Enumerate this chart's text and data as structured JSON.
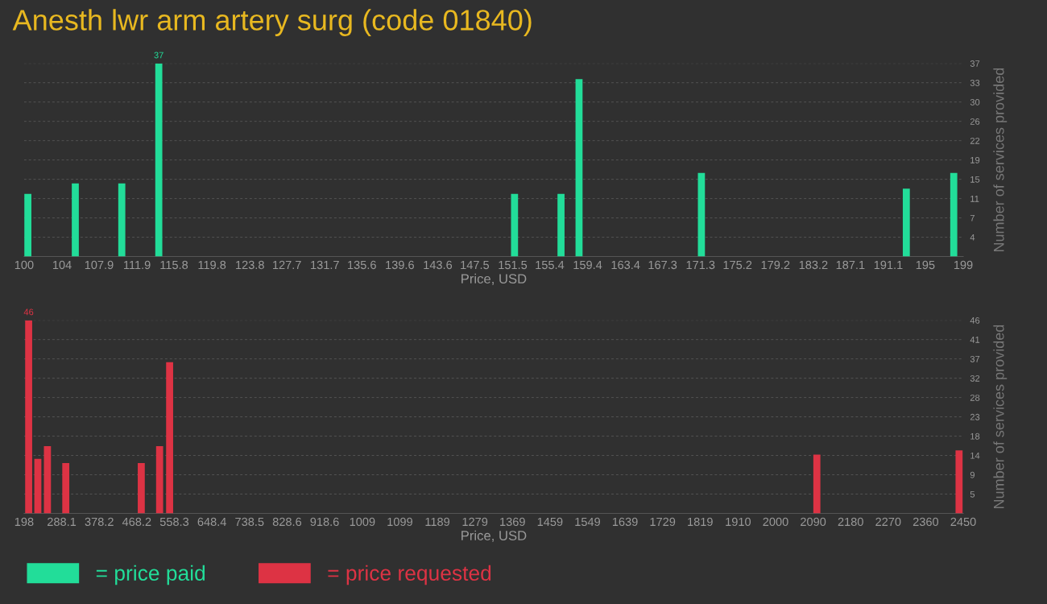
{
  "chart_data": [
    {
      "type": "bar",
      "title": "Anesth lwr arm artery surg (code 01840)",
      "xlabel": "Price, USD",
      "ylabel": "Number of services provided",
      "x": [
        100.4,
        105.4,
        110.3,
        114.2,
        151.7,
        156.6,
        158.5,
        171.4,
        193.0,
        198.0
      ],
      "series": [
        {
          "name": "= price paid",
          "color": "#22dd99",
          "values": [
            12,
            14,
            14,
            37,
            12,
            12,
            34,
            16,
            13,
            16
          ],
          "value_labels": [
            null,
            null,
            null,
            "37",
            null,
            null,
            null,
            null,
            null,
            null
          ]
        }
      ],
      "xlim": [
        100,
        199
      ],
      "xticks": [
        100,
        104,
        107.9,
        111.9,
        115.8,
        119.8,
        123.8,
        127.7,
        131.7,
        135.6,
        139.6,
        143.6,
        147.5,
        151.5,
        155.4,
        159.4,
        163.4,
        167.3,
        171.3,
        175.2,
        179.2,
        183.2,
        187.1,
        191.1,
        195,
        199
      ],
      "ylim": [
        0,
        37
      ],
      "yticks": [
        {
          "value": 3.7,
          "label": "4"
        },
        {
          "value": 7.4,
          "label": "7"
        },
        {
          "value": 11.1,
          "label": "11"
        },
        {
          "value": 14.8,
          "label": "15"
        },
        {
          "value": 18.5,
          "label": "19"
        },
        {
          "value": 22.2,
          "label": "22"
        },
        {
          "value": 25.9,
          "label": "26"
        },
        {
          "value": 29.6,
          "label": "30"
        },
        {
          "value": 33.3,
          "label": "33"
        },
        {
          "value": 37,
          "label": "37"
        }
      ],
      "grid": "y",
      "legend": "bottom left"
    },
    {
      "type": "bar",
      "xlabel": "Price, USD",
      "ylabel": "Number of services provided",
      "x": [
        209,
        231,
        254,
        298,
        479,
        523,
        547,
        2099,
        2440
      ],
      "series": [
        {
          "name": "= price requested",
          "color": "#dd3344",
          "values": [
            46,
            13,
            16,
            12,
            12,
            16,
            36,
            14,
            15
          ],
          "value_labels": [
            "46",
            null,
            null,
            null,
            null,
            null,
            null,
            null,
            null
          ]
        }
      ],
      "xlim": [
        198,
        2450
      ],
      "xticks": [
        198,
        288.1,
        378.2,
        468.2,
        558.3,
        648.4,
        738.5,
        828.6,
        918.6,
        1009,
        1099,
        1189,
        1279,
        1369,
        1459,
        1549,
        1639,
        1729,
        1819,
        1910,
        2000,
        2090,
        2180,
        2270,
        2360,
        2450
      ],
      "ylim": [
        0,
        46
      ],
      "yticks": [
        {
          "value": 4.6,
          "label": "5"
        },
        {
          "value": 9.2,
          "label": "9"
        },
        {
          "value": 13.8,
          "label": "14"
        },
        {
          "value": 18.4,
          "label": "18"
        },
        {
          "value": 23,
          "label": "23"
        },
        {
          "value": 27.6,
          "label": "28"
        },
        {
          "value": 32.2,
          "label": "32"
        },
        {
          "value": 36.8,
          "label": "37"
        },
        {
          "value": 41.4,
          "label": "41"
        },
        {
          "value": 46,
          "label": "46"
        }
      ],
      "grid": "y",
      "legend": "bottom left"
    }
  ]
}
